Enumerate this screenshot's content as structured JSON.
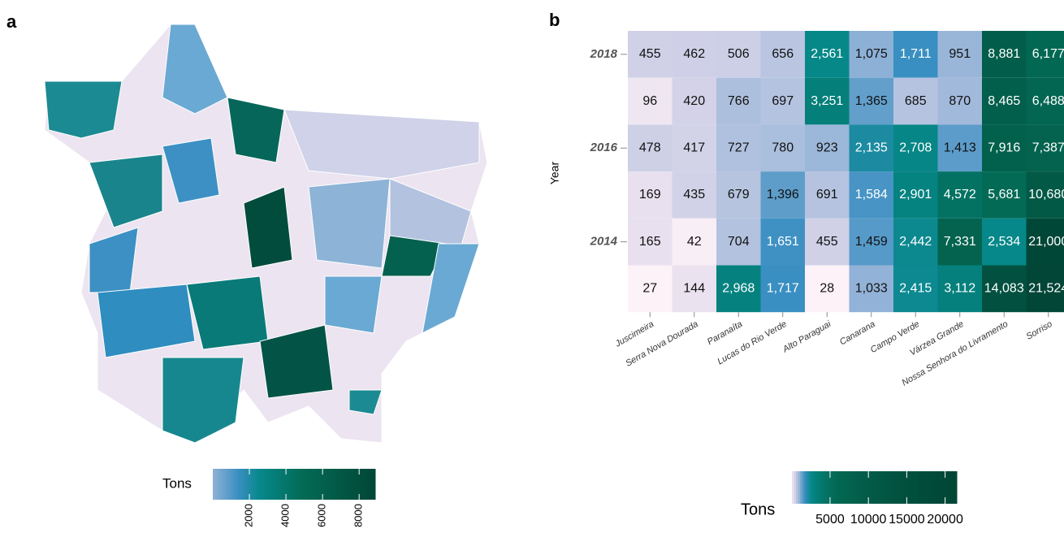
{
  "panel_labels": [
    "a",
    "b"
  ],
  "map_legend": {
    "title": "Tons",
    "lim": [
      0,
      8881
    ],
    "ticks": [
      2000,
      4000,
      6000,
      8000
    ]
  },
  "chart_data": {
    "type": "heatmap",
    "ylabel": "Year",
    "x": [
      "Juscimeira",
      "Serra Nova Dourada",
      "Paranaíta",
      "Lucas do Rio Verde",
      "Alto Paraguai",
      "Canarana",
      "Campo Verde",
      "Várzea Grande",
      "Nossa Senhora do Livramento",
      "Sorriso"
    ],
    "y": [
      "2018",
      null,
      "2016",
      null,
      "2014",
      null
    ],
    "values": [
      [
        455,
        462,
        506,
        656,
        2561,
        1075,
        1711,
        951,
        8881,
        6177
      ],
      [
        96,
        420,
        766,
        697,
        3251,
        1365,
        685,
        870,
        8465,
        6488
      ],
      [
        478,
        417,
        727,
        780,
        923,
        2135,
        2708,
        1413,
        7916,
        7387
      ],
      [
        169,
        435,
        679,
        1396,
        691,
        1584,
        2901,
        4572,
        5681,
        10680
      ],
      [
        165,
        42,
        704,
        1651,
        455,
        1459,
        2442,
        7331,
        2534,
        21000
      ],
      [
        27,
        144,
        2968,
        1717,
        28,
        1033,
        2415,
        3112,
        14083,
        21524
      ]
    ],
    "value_labels": [
      [
        "455",
        "462",
        "506",
        "656",
        "2,561",
        "1,075",
        "1,711",
        "951",
        "8,881",
        "6,177"
      ],
      [
        "96",
        "420",
        "766",
        "697",
        "3,251",
        "1,365",
        "685",
        "870",
        "8,465",
        "6,488"
      ],
      [
        "478",
        "417",
        "727",
        "780",
        "923",
        "2,135",
        "2,708",
        "1,413",
        "7,916",
        "7,387"
      ],
      [
        "169",
        "435",
        "679",
        "1,396",
        "691",
        "1,584",
        "2,901",
        "4,572",
        "5,681",
        "10,680"
      ],
      [
        "165",
        "42",
        "704",
        "1,651",
        "455",
        "1,459",
        "2,442",
        "7,331",
        "2,534",
        "21,000"
      ],
      [
        "27",
        "144",
        "2,968",
        "1,717",
        "28",
        "1,033",
        "2,415",
        "3,112",
        "14,083",
        "21,524"
      ]
    ],
    "legend": {
      "title": "Tons",
      "lim": [
        27,
        21524
      ],
      "ticks": [
        5000,
        10000,
        15000,
        20000
      ]
    }
  }
}
